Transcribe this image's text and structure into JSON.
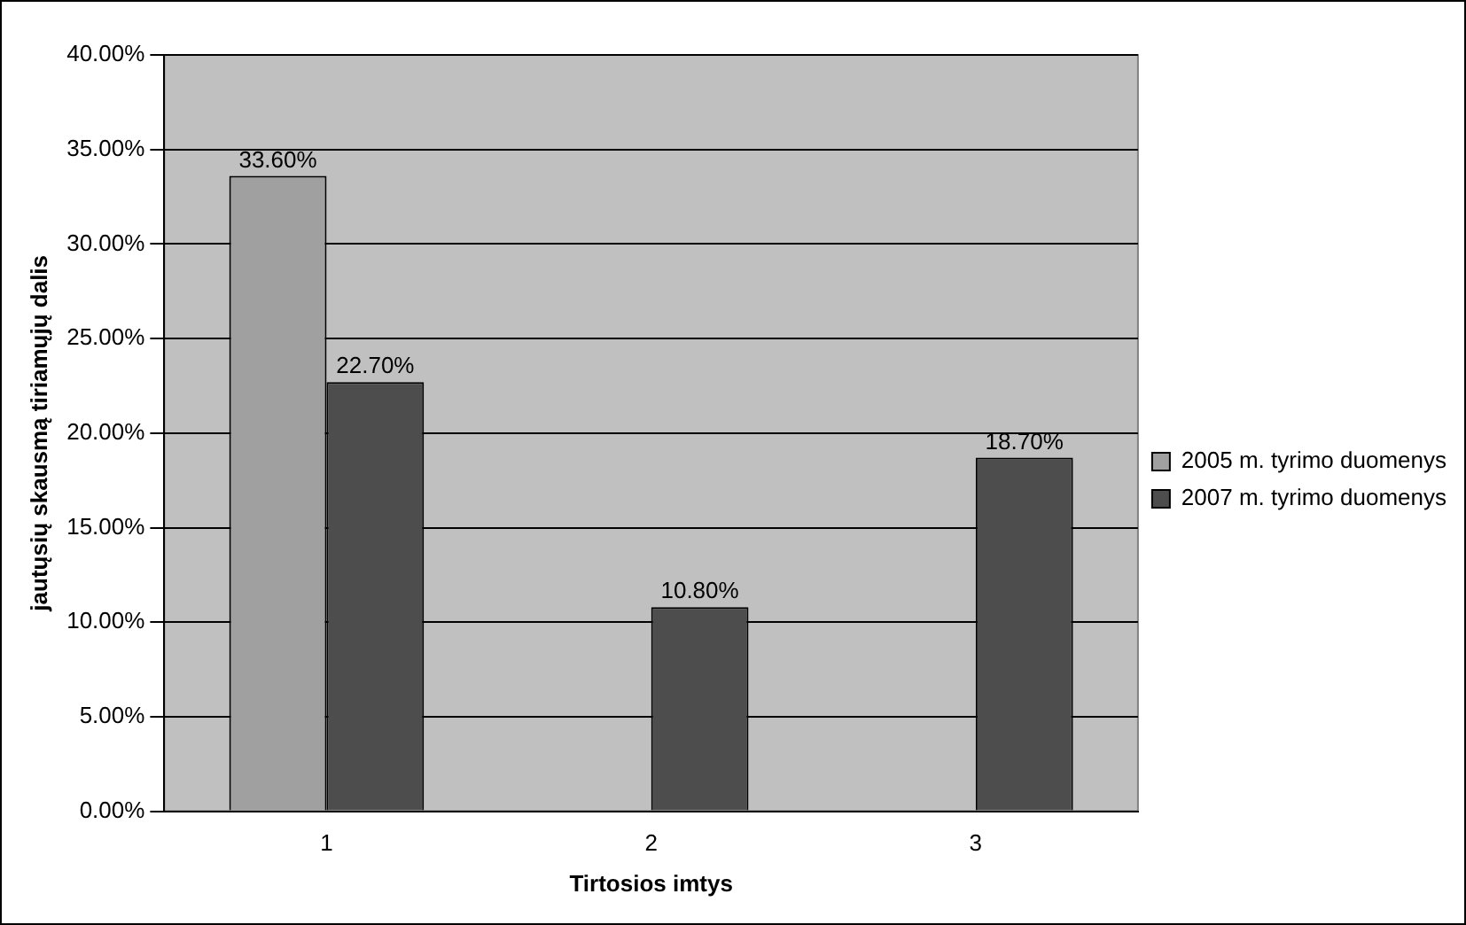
{
  "chart_data": {
    "type": "bar",
    "xlabel": "Tirtosios imtys",
    "ylabel": "jautųsių skausmą tiriamųjų dalis",
    "categories": [
      "1",
      "2",
      "3"
    ],
    "series": [
      {
        "name": "2005 m. tyrimo duomenys",
        "color": "#a0a0a0",
        "values": [
          33.6,
          null,
          null
        ],
        "value_labels": [
          "33.60%",
          null,
          null
        ]
      },
      {
        "name": "2007 m. tyrimo duomenys",
        "color": "#4d4d4d",
        "values": [
          22.7,
          10.8,
          18.7
        ],
        "value_labels": [
          "22.70%",
          "10.80%",
          "18.70%"
        ]
      }
    ],
    "ylim": [
      0,
      40
    ],
    "yticks": [
      {
        "value": 0,
        "label": "0.00%"
      },
      {
        "value": 5,
        "label": "5.00%"
      },
      {
        "value": 10,
        "label": "10.00%"
      },
      {
        "value": 15,
        "label": "15.00%"
      },
      {
        "value": 20,
        "label": "20.00%"
      },
      {
        "value": 25,
        "label": "25.00%"
      },
      {
        "value": 30,
        "label": "30.00%"
      },
      {
        "value": 35,
        "label": "35.00%"
      },
      {
        "value": 40,
        "label": "40.00%"
      }
    ],
    "grid": "y",
    "legend": "right"
  }
}
